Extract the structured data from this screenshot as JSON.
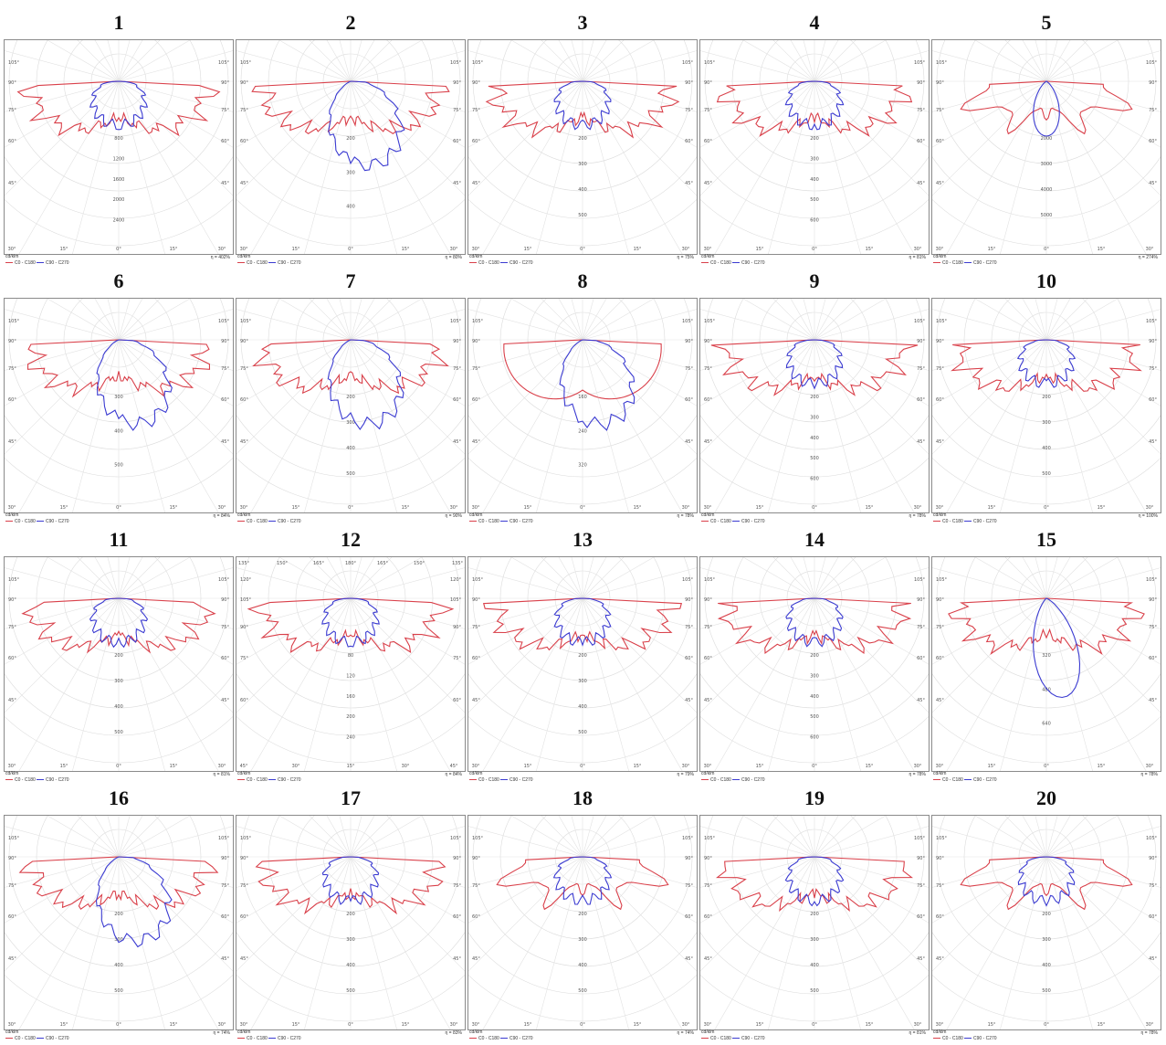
{
  "chart_data": [
    {
      "title": "1",
      "type": "polar",
      "ring_labels": [
        "800",
        "1200",
        "1600",
        "2000",
        "2400"
      ],
      "angle_labels": [
        "105°",
        "90°",
        "75°",
        "60°",
        "45°",
        "30°",
        "15°",
        "0°"
      ],
      "unit": "cd/klm",
      "efficiency": "η = 402%",
      "series": [
        {
          "name": "C0 - C180",
          "color": "#d9404a",
          "shape": "batwing"
        },
        {
          "name": "C90 - C270",
          "color": "#3b3bd1",
          "shape": "round"
        }
      ]
    },
    {
      "title": "2",
      "type": "polar",
      "ring_labels": [
        "200",
        "300",
        "400"
      ],
      "angle_labels": [
        "105°",
        "90°",
        "75°",
        "60°",
        "45°",
        "30°",
        "15°",
        "0°"
      ],
      "unit": "cd/klm",
      "efficiency": "η = 80%",
      "series": [
        {
          "name": "C0 - C180",
          "color": "#d9404a",
          "shape": "batwing"
        },
        {
          "name": "C90 - C270",
          "color": "#3b3bd1",
          "shape": "skew"
        }
      ]
    },
    {
      "title": "3",
      "type": "polar",
      "ring_labels": [
        "200",
        "300",
        "400",
        "500"
      ],
      "angle_labels": [
        "105°",
        "90°",
        "75°",
        "60°",
        "45°",
        "30°",
        "15°",
        "0°"
      ],
      "unit": "cd/klm",
      "efficiency": "η = 75%",
      "series": [
        {
          "name": "C0 - C180",
          "color": "#d9404a",
          "shape": "batwing"
        },
        {
          "name": "C90 - C270",
          "color": "#3b3bd1",
          "shape": "round"
        }
      ]
    },
    {
      "title": "4",
      "type": "polar",
      "ring_labels": [
        "200",
        "300",
        "400",
        "500",
        "600"
      ],
      "angle_labels": [
        "105°",
        "90°",
        "75°",
        "60°",
        "45°",
        "30°",
        "15°",
        "0°"
      ],
      "unit": "cd/klm",
      "efficiency": "η = 81%",
      "series": [
        {
          "name": "C0 - C180",
          "color": "#d9404a",
          "shape": "batwing"
        },
        {
          "name": "C90 - C270",
          "color": "#3b3bd1",
          "shape": "round"
        }
      ]
    },
    {
      "title": "5",
      "type": "polar",
      "ring_labels": [
        "2000",
        "3000",
        "4000",
        "5000"
      ],
      "angle_labels": [
        "105°",
        "90°",
        "75°",
        "60°",
        "45°",
        "30°",
        "15°",
        "0°"
      ],
      "unit": "cd/klm",
      "efficiency": "η = 274%",
      "series": [
        {
          "name": "C0 - C180",
          "color": "#d9404a",
          "shape": "spikes"
        },
        {
          "name": "C90 - C270",
          "color": "#3b3bd1",
          "shape": "narrow"
        }
      ]
    },
    {
      "title": "6",
      "type": "polar",
      "ring_labels": [
        "300",
        "400",
        "500"
      ],
      "angle_labels": [
        "105°",
        "90°",
        "75°",
        "60°",
        "45°",
        "30°",
        "15°",
        "0°"
      ],
      "unit": "cd/klm",
      "efficiency": "η = 84%",
      "series": [
        {
          "name": "C0 - C180",
          "color": "#d9404a",
          "shape": "batwing"
        },
        {
          "name": "C90 - C270",
          "color": "#3b3bd1",
          "shape": "skew"
        }
      ]
    },
    {
      "title": "7",
      "type": "polar",
      "ring_labels": [
        "200",
        "300",
        "400",
        "500"
      ],
      "angle_labels": [
        "105°",
        "90°",
        "75°",
        "60°",
        "45°",
        "30°",
        "15°",
        "0°"
      ],
      "unit": "cd/klm",
      "efficiency": "η = 90%",
      "series": [
        {
          "name": "C0 - C180",
          "color": "#d9404a",
          "shape": "batwing"
        },
        {
          "name": "C90 - C270",
          "color": "#3b3bd1",
          "shape": "skew"
        }
      ]
    },
    {
      "title": "8",
      "type": "polar",
      "ring_labels": [
        "160",
        "240",
        "320"
      ],
      "angle_labels": [
        "105°",
        "90°",
        "75°",
        "60°",
        "45°",
        "30°",
        "15°",
        "0°"
      ],
      "unit": "cd/klm",
      "efficiency": "η = 78%",
      "series": [
        {
          "name": "C0 - C180",
          "color": "#d9404a",
          "shape": "oval"
        },
        {
          "name": "C90 - C270",
          "color": "#3b3bd1",
          "shape": "skew"
        }
      ]
    },
    {
      "title": "9",
      "type": "polar",
      "ring_labels": [
        "200",
        "300",
        "400",
        "500",
        "600"
      ],
      "angle_labels": [
        "105°",
        "90°",
        "75°",
        "60°",
        "45°",
        "30°",
        "15°",
        "0°"
      ],
      "unit": "cd/klm",
      "efficiency": "η = 78%",
      "series": [
        {
          "name": "C0 - C180",
          "color": "#d9404a",
          "shape": "batwing"
        },
        {
          "name": "C90 - C270",
          "color": "#3b3bd1",
          "shape": "round"
        }
      ]
    },
    {
      "title": "10",
      "type": "polar",
      "ring_labels": [
        "200",
        "300",
        "400",
        "500"
      ],
      "angle_labels": [
        "105°",
        "90°",
        "75°",
        "60°",
        "45°",
        "30°",
        "15°",
        "0°"
      ],
      "unit": "cd/klm",
      "efficiency": "η = 100%",
      "series": [
        {
          "name": "C0 - C180",
          "color": "#d9404a",
          "shape": "batwing"
        },
        {
          "name": "C90 - C270",
          "color": "#3b3bd1",
          "shape": "round"
        }
      ]
    },
    {
      "title": "11",
      "type": "polar",
      "ring_labels": [
        "200",
        "300",
        "400",
        "500"
      ],
      "angle_labels": [
        "105°",
        "90°",
        "75°",
        "60°",
        "45°",
        "30°",
        "15°",
        "0°"
      ],
      "unit": "cd/klm",
      "efficiency": "η = 81%",
      "series": [
        {
          "name": "C0 - C180",
          "color": "#d9404a",
          "shape": "batwing"
        },
        {
          "name": "C90 - C270",
          "color": "#3b3bd1",
          "shape": "round"
        }
      ]
    },
    {
      "title": "12",
      "type": "polar",
      "ring_labels": [
        "80",
        "120",
        "160",
        "200",
        "240"
      ],
      "angle_labels": [
        "135°",
        "150°",
        "165°",
        "180°",
        "120°",
        "105°",
        "90°",
        "75°",
        "60°",
        "45°",
        "30°",
        "15°",
        "0°"
      ],
      "unit": "cd/klm",
      "efficiency": "η = 84%",
      "series": [
        {
          "name": "C0 - C180",
          "color": "#d9404a",
          "shape": "batwing"
        },
        {
          "name": "C90 - C270",
          "color": "#3b3bd1",
          "shape": "round"
        }
      ]
    },
    {
      "title": "13",
      "type": "polar",
      "ring_labels": [
        "200",
        "300",
        "400",
        "500"
      ],
      "angle_labels": [
        "105°",
        "90°",
        "75°",
        "60°",
        "45°",
        "30°",
        "15°",
        "0°"
      ],
      "unit": "cd/klm",
      "efficiency": "η = 79%",
      "series": [
        {
          "name": "C0 - C180",
          "color": "#d9404a",
          "shape": "batwing"
        },
        {
          "name": "C90 - C270",
          "color": "#3b3bd1",
          "shape": "round"
        }
      ]
    },
    {
      "title": "14",
      "type": "polar",
      "ring_labels": [
        "200",
        "300",
        "400",
        "500",
        "600"
      ],
      "angle_labels": [
        "105°",
        "90°",
        "75°",
        "60°",
        "45°",
        "30°",
        "15°",
        "0°"
      ],
      "unit": "cd/klm",
      "efficiency": "η = 78%",
      "series": [
        {
          "name": "C0 - C180",
          "color": "#d9404a",
          "shape": "batwing"
        },
        {
          "name": "C90 - C270",
          "color": "#3b3bd1",
          "shape": "round"
        }
      ]
    },
    {
      "title": "15",
      "type": "polar",
      "ring_labels": [
        "320",
        "480",
        "640"
      ],
      "angle_labels": [
        "105°",
        "90°",
        "75°",
        "60°",
        "45°",
        "30°",
        "15°",
        "0°"
      ],
      "unit": "cd/klm",
      "efficiency": "η = 78%",
      "series": [
        {
          "name": "C0 - C180",
          "color": "#d9404a",
          "shape": "batwing"
        },
        {
          "name": "C90 - C270",
          "color": "#3b3bd1",
          "shape": "narrow-skew"
        }
      ]
    },
    {
      "title": "16",
      "type": "polar",
      "ring_labels": [
        "200",
        "300",
        "400",
        "500"
      ],
      "angle_labels": [
        "105°",
        "90°",
        "75°",
        "60°",
        "45°",
        "30°",
        "15°",
        "0°"
      ],
      "unit": "cd/klm",
      "efficiency": "η = 74%",
      "series": [
        {
          "name": "C0 - C180",
          "color": "#d9404a",
          "shape": "batwing"
        },
        {
          "name": "C90 - C270",
          "color": "#3b3bd1",
          "shape": "skew"
        }
      ]
    },
    {
      "title": "17",
      "type": "polar",
      "ring_labels": [
        "200",
        "300",
        "400",
        "500"
      ],
      "angle_labels": [
        "105°",
        "90°",
        "75°",
        "60°",
        "45°",
        "30°",
        "15°",
        "0°"
      ],
      "unit": "cd/klm",
      "efficiency": "η = 83%",
      "series": [
        {
          "name": "C0 - C180",
          "color": "#d9404a",
          "shape": "batwing"
        },
        {
          "name": "C90 - C270",
          "color": "#3b3bd1",
          "shape": "round"
        }
      ]
    },
    {
      "title": "18",
      "type": "polar",
      "ring_labels": [
        "200",
        "300",
        "400",
        "500"
      ],
      "angle_labels": [
        "105°",
        "90°",
        "75°",
        "60°",
        "45°",
        "30°",
        "15°",
        "0°"
      ],
      "unit": "cd/klm",
      "efficiency": "η = 74%",
      "series": [
        {
          "name": "C0 - C180",
          "color": "#d9404a",
          "shape": "spikes"
        },
        {
          "name": "C90 - C270",
          "color": "#3b3bd1",
          "shape": "round"
        }
      ]
    },
    {
      "title": "19",
      "type": "polar",
      "ring_labels": [
        "200",
        "300",
        "400",
        "500"
      ],
      "angle_labels": [
        "105°",
        "90°",
        "75°",
        "60°",
        "45°",
        "30°",
        "15°",
        "0°"
      ],
      "unit": "cd/klm",
      "efficiency": "η = 81%",
      "series": [
        {
          "name": "C0 - C180",
          "color": "#d9404a",
          "shape": "batwing"
        },
        {
          "name": "C90 - C270",
          "color": "#3b3bd1",
          "shape": "round"
        }
      ]
    },
    {
      "title": "20",
      "type": "polar",
      "ring_labels": [
        "200",
        "300",
        "400",
        "500"
      ],
      "angle_labels": [
        "105°",
        "90°",
        "75°",
        "60°",
        "45°",
        "30°",
        "15°",
        "0°"
      ],
      "unit": "cd/klm",
      "efficiency": "η = 78%",
      "series": [
        {
          "name": "C0 - C180",
          "color": "#d9404a",
          "shape": "spikes"
        },
        {
          "name": "C90 - C270",
          "color": "#3b3bd1",
          "shape": "round"
        }
      ]
    }
  ]
}
